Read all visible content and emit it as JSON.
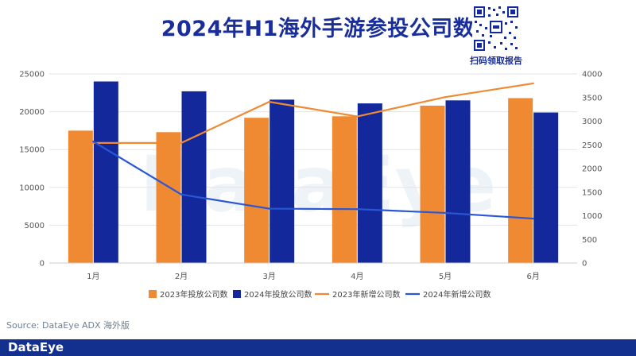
{
  "title": "2024年H1海外手游参投公司数",
  "qr_caption": "扫码领取报告",
  "source": "Source: DataEye ADX 海外版",
  "footer_logo": "DataEye",
  "watermark": "DataEye",
  "colors": {
    "bar_2023": "#ef8a33",
    "bar_2024": "#13289b",
    "line_2023": "#ef8a33",
    "line_2024": "#2a57d6",
    "title": "#1a2e9a",
    "footer": "#14308f"
  },
  "chart_data": {
    "type": "bar",
    "categories": [
      "1月",
      "2月",
      "3月",
      "4月",
      "5月",
      "6月"
    ],
    "series": [
      {
        "name": "2023年投放公司数",
        "type": "bar",
        "axis": "left",
        "values": [
          17500,
          17300,
          19200,
          19400,
          20800,
          21800
        ]
      },
      {
        "name": "2024年投放公司数",
        "type": "bar",
        "axis": "left",
        "values": [
          24000,
          22700,
          21600,
          21100,
          21500,
          19900
        ]
      },
      {
        "name": "2023年新增公司数",
        "type": "line",
        "axis": "right",
        "values": [
          2540,
          2540,
          3410,
          3100,
          3510,
          3800
        ]
      },
      {
        "name": "2024年新增公司数",
        "type": "line",
        "axis": "right",
        "values": [
          2570,
          1450,
          1150,
          1140,
          1060,
          940
        ]
      }
    ],
    "y_left": {
      "min": 0,
      "max": 25000,
      "ticks": [
        0,
        5000,
        10000,
        15000,
        20000,
        25000
      ]
    },
    "y_right": {
      "min": 0,
      "max": 4000,
      "ticks": [
        0,
        500,
        1000,
        1500,
        2000,
        2500,
        3000,
        3500,
        4000
      ]
    },
    "grid": true,
    "legend_position": "bottom"
  }
}
